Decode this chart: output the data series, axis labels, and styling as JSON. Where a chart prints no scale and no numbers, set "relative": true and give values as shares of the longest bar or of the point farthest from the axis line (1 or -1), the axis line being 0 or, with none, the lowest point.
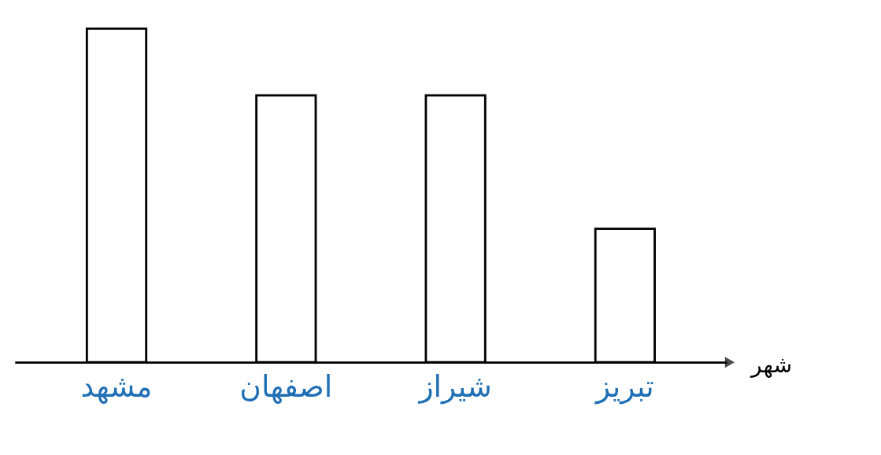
{
  "chart_data": {
    "type": "bar",
    "relative": true,
    "xlabel": "شهر",
    "categories": [
      "مشهد",
      "اصفهان",
      "شیراز",
      "تبریز"
    ],
    "values": [
      1,
      0.8,
      0.8,
      0.4
    ],
    "color": "#ffffff",
    "grid": false
  }
}
